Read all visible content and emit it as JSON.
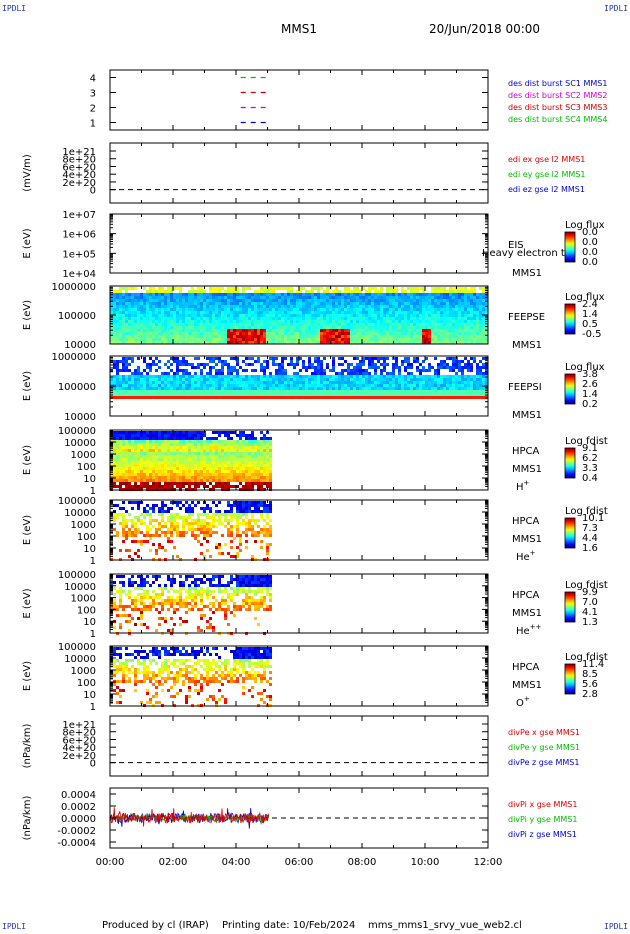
{
  "corner_label": "IPDLI",
  "header": {
    "spacecraft": "MMS1",
    "datetime": "20/Jun/2018 00:00"
  },
  "footer": {
    "produced_by": "Produced by cl (IRAP)",
    "printing_date": "Printing date: 10/Feb/2024",
    "script": "mms_mms1_srvy_vue_web2.cl"
  },
  "colors": {
    "mms1": "#0000cc",
    "mms2": "#cc00cc",
    "mms3": "#cc0000",
    "mms4": "#00bb00",
    "x": "#dd0000",
    "y": "#00bb00",
    "z": "#0000cc"
  },
  "chart_data": {
    "type": "multi-panel time series",
    "x_ticks": [
      "00:00",
      "02:00",
      "04:00",
      "06:00",
      "08:00",
      "10:00",
      "12:00"
    ],
    "xlim_hours": [
      0,
      12
    ],
    "panels": [
      {
        "type": "line",
        "yticks": [
          "1",
          "2",
          "3",
          "4"
        ],
        "ylim": [
          0.5,
          4.5
        ],
        "series": [
          {
            "name": "des dist burst SC1 MMS1",
            "level": 1,
            "color_key": "mms1",
            "x_hours": [
              4.15,
              4.95
            ]
          },
          {
            "name": "des dist burst SC2 MMS2",
            "level": 2,
            "color_key": "mms2",
            "x_hours": [
              4.15,
              4.95
            ]
          },
          {
            "name": "des dist burst SC3 MMS3",
            "level": 3,
            "color_key": "mms3",
            "x_hours": [
              4.15,
              4.95
            ]
          },
          {
            "name": "des dist burst SC4 MMS4",
            "level": 4,
            "color_key": "mms4",
            "x_hours": [
              4.15,
              4.95
            ]
          }
        ]
      },
      {
        "type": "line",
        "ylabel": "(mV/m)",
        "yticks": [
          "0",
          "2e+20",
          "4e+20",
          "6e+20",
          "8e+20",
          "1e+21"
        ],
        "ylim": [
          -0.3,
          1.05
        ],
        "series": [
          {
            "name": "edi ex gse l2 MMS1",
            "color_key": "x"
          },
          {
            "name": "edi ey gse l2 MMS1",
            "color_key": "y"
          },
          {
            "name": "edi ez gse l2 MMS1",
            "color_key": "z"
          }
        ]
      },
      {
        "type": "heatmap",
        "ylabel": "E (eV)",
        "yticks": [
          "1e+04",
          "1e+05",
          "1e+06",
          "1e+07"
        ],
        "ylim": [
          4,
          7
        ],
        "instrument": [
          "EIS",
          "MMS1"
        ],
        "overlay_text": "Heavy electron to",
        "colorbar": {
          "title": "Log flux",
          "ticks": [
            "0.0",
            "0.0",
            "0.0",
            "0.0"
          ]
        }
      },
      {
        "type": "heatmap",
        "ylabel": "E (eV)",
        "yticks": [
          "10000",
          "100000",
          "1000000"
        ],
        "ylim": [
          4,
          6
        ],
        "instrument": [
          "FEEPSE",
          "MMS1"
        ],
        "coverage_hours": [
          0,
          12
        ],
        "colorbar": {
          "title": "Log flux",
          "ticks": [
            "2.4",
            "1.4",
            "0.5",
            "-0.5"
          ]
        }
      },
      {
        "type": "heatmap",
        "ylabel": "E (eV)",
        "yticks": [
          "10000",
          "100000",
          "1000000"
        ],
        "ylim": [
          4,
          6
        ],
        "instrument": [
          "FEEPSI",
          "MMS1"
        ],
        "coverage_hours": [
          0,
          12
        ],
        "colorbar": {
          "title": "Log flux",
          "ticks": [
            "3.8",
            "2.6",
            "1.4",
            "0.2"
          ]
        }
      },
      {
        "type": "heatmap",
        "ylabel": "E (eV)",
        "yticks": [
          "1",
          "10",
          "100",
          "1000",
          "10000",
          "100000"
        ],
        "ylim": [
          0,
          5
        ],
        "instrument": [
          "HPCA",
          "MMS1"
        ],
        "species": "H",
        "species_sup": "+",
        "coverage_hours": [
          0,
          5.05
        ],
        "colorbar": {
          "title": "Log fdist",
          "ticks": [
            "9.1",
            "6.2",
            "3.3",
            "0.4"
          ]
        }
      },
      {
        "type": "heatmap",
        "ylabel": "E (eV)",
        "yticks": [
          "1",
          "10",
          "100",
          "1000",
          "10000",
          "100000"
        ],
        "ylim": [
          0,
          5
        ],
        "instrument": [
          "HPCA",
          "MMS1"
        ],
        "species": "He",
        "species_sup": "+",
        "coverage_hours": [
          0,
          5.05
        ],
        "colorbar": {
          "title": "Log fdist",
          "ticks": [
            "10.1",
            "7.3",
            "4.4",
            "1.6"
          ]
        }
      },
      {
        "type": "heatmap",
        "ylabel": "E (eV)",
        "yticks": [
          "1",
          "10",
          "100",
          "1000",
          "10000",
          "100000"
        ],
        "ylim": [
          0,
          5
        ],
        "instrument": [
          "HPCA",
          "MMS1"
        ],
        "species": "He",
        "species_sup": "++",
        "coverage_hours": [
          0,
          5.05
        ],
        "colorbar": {
          "title": "Log fdist",
          "ticks": [
            "9.9",
            "7.0",
            "4.1",
            "1.3"
          ]
        }
      },
      {
        "type": "heatmap",
        "ylabel": "E (eV)",
        "yticks": [
          "1",
          "10",
          "100",
          "1000",
          "10000",
          "100000"
        ],
        "ylim": [
          0,
          5
        ],
        "instrument": [
          "HPCA",
          "MMS1"
        ],
        "species": "O",
        "species_sup": "+",
        "coverage_hours": [
          0,
          5.05
        ],
        "colorbar": {
          "title": "Log fdist",
          "ticks": [
            "11.4",
            "8.5",
            "5.6",
            "2.8"
          ]
        }
      },
      {
        "type": "line",
        "ylabel": "(nPa/km)",
        "yticks": [
          "0",
          "2e+20",
          "4e+20",
          "6e+20",
          "8e+20",
          "1e+21"
        ],
        "ylim": [
          -0.3,
          1.05
        ],
        "series": [
          {
            "name": "divPe x gse MMS1",
            "color_key": "x"
          },
          {
            "name": "divPe y gse MMS1",
            "color_key": "y"
          },
          {
            "name": "divPe z gse MMS1",
            "color_key": "z"
          }
        ]
      },
      {
        "type": "line",
        "ylabel": "(nPa/km)",
        "yticks": [
          "-0.0004",
          "-0.0002",
          "0.0000",
          "0.0002",
          "0.0004"
        ],
        "ylim": [
          -0.0005,
          0.0005
        ],
        "coverage_hours": [
          0,
          5.05
        ],
        "series": [
          {
            "name": "divPi x gse MMS1",
            "color_key": "x"
          },
          {
            "name": "divPi y gse MMS1",
            "color_key": "y"
          },
          {
            "name": "divPi z gse MMS1",
            "color_key": "z"
          }
        ]
      }
    ]
  }
}
